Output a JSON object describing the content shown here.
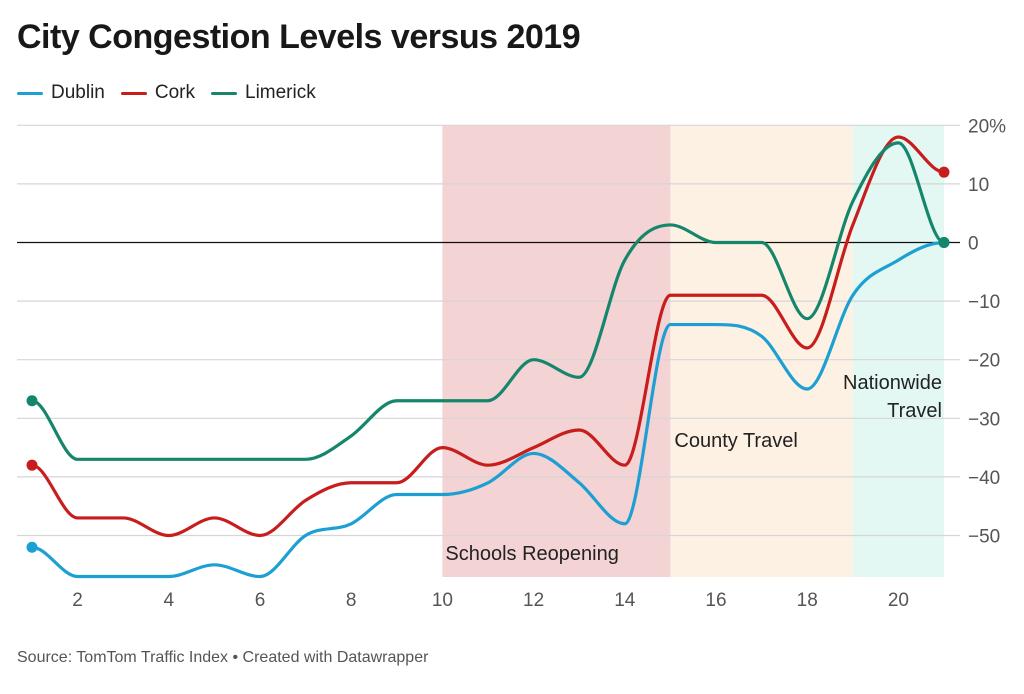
{
  "chart_data": {
    "type": "line",
    "title": "City Congestion Levels versus 2019",
    "source": "Source: TomTom Traffic Index • Created with Datawrapper",
    "xlabel": "",
    "ylabel": "",
    "xlim": [
      1,
      21
    ],
    "ylim": [
      -57.5,
      20
    ],
    "x_ticks": [
      2,
      4,
      6,
      8,
      10,
      12,
      14,
      16,
      18,
      20
    ],
    "y_ticks": [
      20,
      10,
      0,
      -10,
      -20,
      -30,
      -40,
      -50
    ],
    "y_tick_labels": [
      "20%",
      "10",
      "0",
      "−10",
      "−20",
      "−30",
      "−40",
      "−50"
    ],
    "grid": true,
    "legend_position": "top-left",
    "x": [
      1,
      2,
      3,
      4,
      5,
      6,
      7,
      8,
      9,
      10,
      11,
      12,
      13,
      14,
      15,
      16,
      17,
      18,
      19,
      20,
      21
    ],
    "series": [
      {
        "name": "Dublin",
        "color": "#1c9fd3",
        "values": [
          -52,
          -57,
          -57,
          -57,
          -55,
          -57,
          -50,
          -48,
          -43,
          -43,
          -41,
          -36,
          -41,
          -48,
          -14,
          -14,
          -16,
          -25,
          -9,
          -3,
          0
        ]
      },
      {
        "name": "Cork",
        "color": "#c71e1d",
        "values": [
          -38,
          -47,
          -47,
          -50,
          -47,
          -50,
          -44,
          -41,
          -41,
          -35,
          -38,
          -35,
          -32,
          -38,
          -9,
          -9,
          -9,
          -18,
          3,
          18,
          12
        ]
      },
      {
        "name": "Limerick",
        "color": "#15866c",
        "values": [
          -27,
          -37,
          -37,
          -37,
          -37,
          -37,
          -37,
          -33,
          -27,
          -27,
          -27,
          -20,
          -23,
          -3,
          3,
          0,
          0,
          -13,
          7,
          17,
          0
        ]
      }
    ],
    "ranges": [
      {
        "label": "Schools Reopening",
        "from": 10,
        "to": 15,
        "color": "#f3d3d3"
      },
      {
        "label": "County Travel",
        "from": 15,
        "to": 19,
        "color": "#fdf1e3"
      },
      {
        "label": "Nationwide Travel",
        "label_lines": [
          "Nationwide",
          "Travel"
        ],
        "from": 19,
        "to": 21,
        "color": "#e3f8f3"
      }
    ]
  }
}
